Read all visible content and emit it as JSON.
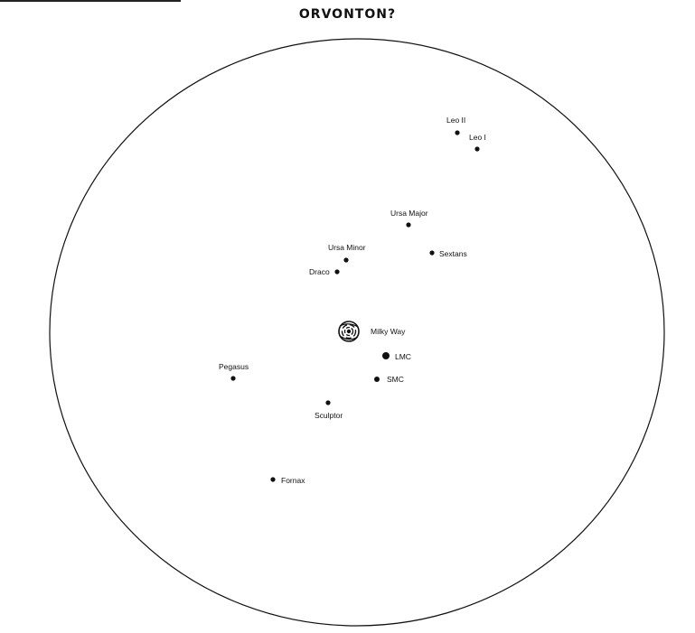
{
  "title": "ORVONTON?",
  "colors": {
    "ink": "#111111",
    "background": "#ffffff"
  },
  "galaxies": [
    {
      "id": "leo-ii",
      "label": "Leo II"
    },
    {
      "id": "leo-i",
      "label": "Leo I"
    },
    {
      "id": "ursa-major",
      "label": "Ursa Major"
    },
    {
      "id": "sextans",
      "label": "Sextans"
    },
    {
      "id": "ursa-minor",
      "label": "Ursa Minor"
    },
    {
      "id": "draco",
      "label": "Draco"
    },
    {
      "id": "milky-way",
      "label": "Milky Way"
    },
    {
      "id": "lmc",
      "label": "LMC"
    },
    {
      "id": "smc",
      "label": "SMC"
    },
    {
      "id": "pegasus",
      "label": "Pegasus"
    },
    {
      "id": "sculptor",
      "label": "Sculptor"
    },
    {
      "id": "fornax",
      "label": "Fornax"
    }
  ]
}
